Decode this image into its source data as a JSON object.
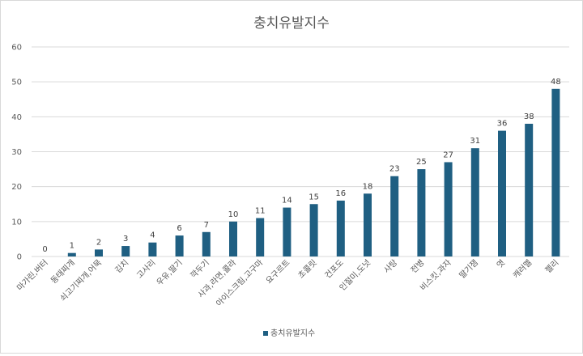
{
  "chart_data": {
    "type": "bar",
    "title": "충치유발지수",
    "xlabel": "",
    "ylabel": "",
    "ylim": [
      0,
      60
    ],
    "yticks": [
      0,
      10,
      20,
      30,
      40,
      50,
      60
    ],
    "grid": true,
    "legend_position": "bottom",
    "bar_color": "#1f5f82",
    "categories": [
      "마가린,버터",
      "동태찌개",
      "쇠고기찌개,어묵",
      "김치",
      "고사리",
      "우유,딸기",
      "깍두기",
      "사과,라면,콜라",
      "아이스크림,고구마",
      "요구르트",
      "초콜릿",
      "건포도",
      "인절미,도넛",
      "사탕",
      "전병",
      "비스킷,과자",
      "딸기잼",
      "엿",
      "캐러멜",
      "젤리"
    ],
    "series": [
      {
        "name": "충치유발지수",
        "values": [
          0,
          1,
          2,
          3,
          4,
          6,
          7,
          10,
          11,
          14,
          15,
          16,
          18,
          23,
          25,
          27,
          31,
          36,
          38,
          48
        ]
      }
    ]
  }
}
